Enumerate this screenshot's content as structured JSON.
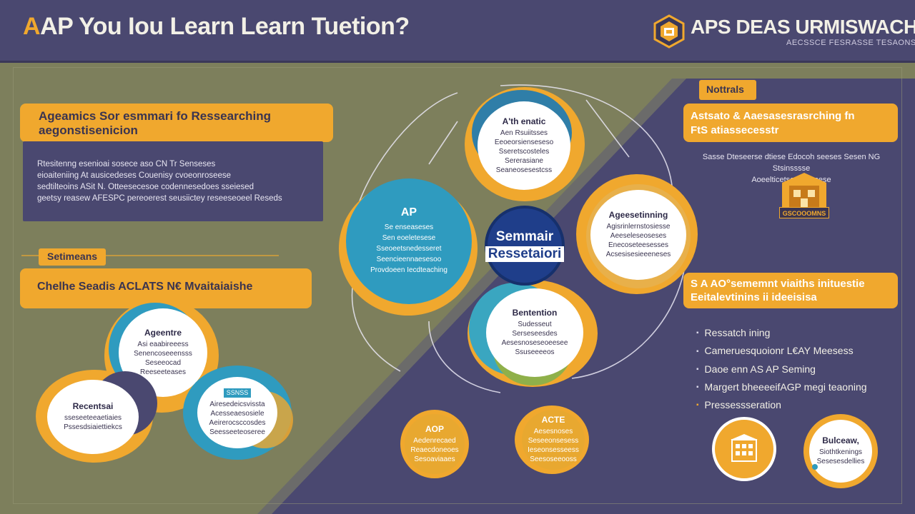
{
  "header": {
    "title_lead": "A",
    "title_rest": "AP You Iou Learn Learn Tuetion?",
    "brand_name": "APS DEAS URMISWACH",
    "brand_tagline": "AECSSCE FESRASSE TESAONSSES"
  },
  "left": {
    "banner1_line1": "Ageamics Sor esmmari fo Ressearching",
    "banner1_line2": "aegonstisenicion",
    "body_lines": [
      "Rtesitenng esenioai sosece aso CN Tr Senseses",
      "eioaiteniing At ausicedeses Couenisy cvoeonroseese",
      "sedtilteoins ASit N. Otteesecesoe codennesedoes sseiesed",
      "geetsy reasew AFESPC pereoerest seusiictey reseeseoeel Reseds"
    ],
    "small_tag": "Setimeans",
    "banner2": "Chelhe Seadis ACLATS N€ Mvaitaiaishe"
  },
  "circles": {
    "top": {
      "title": "A'th enatic",
      "lines": [
        "Aen Rsuiitsses",
        "Eeoeorsienseseso",
        "Sseretscosteles",
        "Sererasiane",
        "Seaneosesestcss"
      ]
    },
    "left": {
      "title": "AP",
      "lines": [
        "Se enseaseses",
        "Sen eoeletesese",
        "Sseoeetsnedesseret",
        "Seencieennaesesoo",
        "Provdoeen Iecdteaching"
      ]
    },
    "right": {
      "title": "Ageesetinning",
      "lines": [
        "Agisrinlernstosiesse",
        "Aeeseleseoseses",
        "Enecoseteesesses",
        "Acsesisesieeeneses"
      ]
    },
    "bottom": {
      "title": "Bentention",
      "lines": [
        "Sudesseut",
        "Serseseesdes",
        "Aesesnoseseoeesee",
        "Ssuseeeeos"
      ]
    },
    "left_a": {
      "title": "Ageentre",
      "lines": [
        "Asi eaabireeess",
        "Senencoseeensss",
        "Seseeocad",
        "Reeseeteases"
      ]
    },
    "left_b": {
      "title": "Recentsai",
      "lines": [
        "sseseeteeaetiaies",
        "Pssesdsiaiettiekcs"
      ]
    },
    "left_c": {
      "title": "",
      "badge": "SSNSS",
      "lines": [
        "Airesedeicsvissta",
        "Acesseaesosiele",
        "Aeirerocsccosdes",
        "Seesseeteoseree"
      ]
    },
    "bottom_a": {
      "title": "AOP",
      "lines": [
        "Aedenrecaed",
        "Reaecdoneoes",
        "Sesoaviaaes"
      ]
    },
    "bottom_b": {
      "title": "ACTE",
      "lines": [
        "Aesesnoses",
        "Seseeonsesess",
        "Ieseonsesseess",
        "Seesoseeooss"
      ]
    }
  },
  "center": {
    "line1": "Semmair",
    "line2": "Ressetaiori"
  },
  "right": {
    "notes_tag": "Nottrals",
    "banner1_line1": "Astsato & Aaesasesrasrching fn",
    "banner1_line2": "FtS atiassecesstr",
    "text_line1": "Sasse Dteseerse dtiese Edocoh seeses Sesen NG Stsinsssse",
    "text_line2": "Aoeelticetsees Eesese",
    "badge_label": "GSCOOOMNS",
    "banner2_line1": "S A AO°sememnt viaiths inituestie",
    "banner2_line2": "Eeitalevtinins ii ideeisisa",
    "list": [
      "Ressatch ining",
      "Cameruesquoionr L€AY Meesess",
      "Daoe enn AS AP Seming",
      "Margert bheeeeifAGP megi teaoning",
      "Pressessseration"
    ],
    "bottom_circle2_title": "Bulceaw,",
    "bottom_circle2_lines": [
      "Siothtkenings",
      "Sesesesdellies"
    ]
  },
  "colors": {
    "accent": "#f0a82e",
    "header_bg": "#4a4870",
    "olive_bg": "#7d7f5c",
    "purple_panel": "#4a4870",
    "teal": "#2f9bbf",
    "navy": "#1f3e8a"
  }
}
